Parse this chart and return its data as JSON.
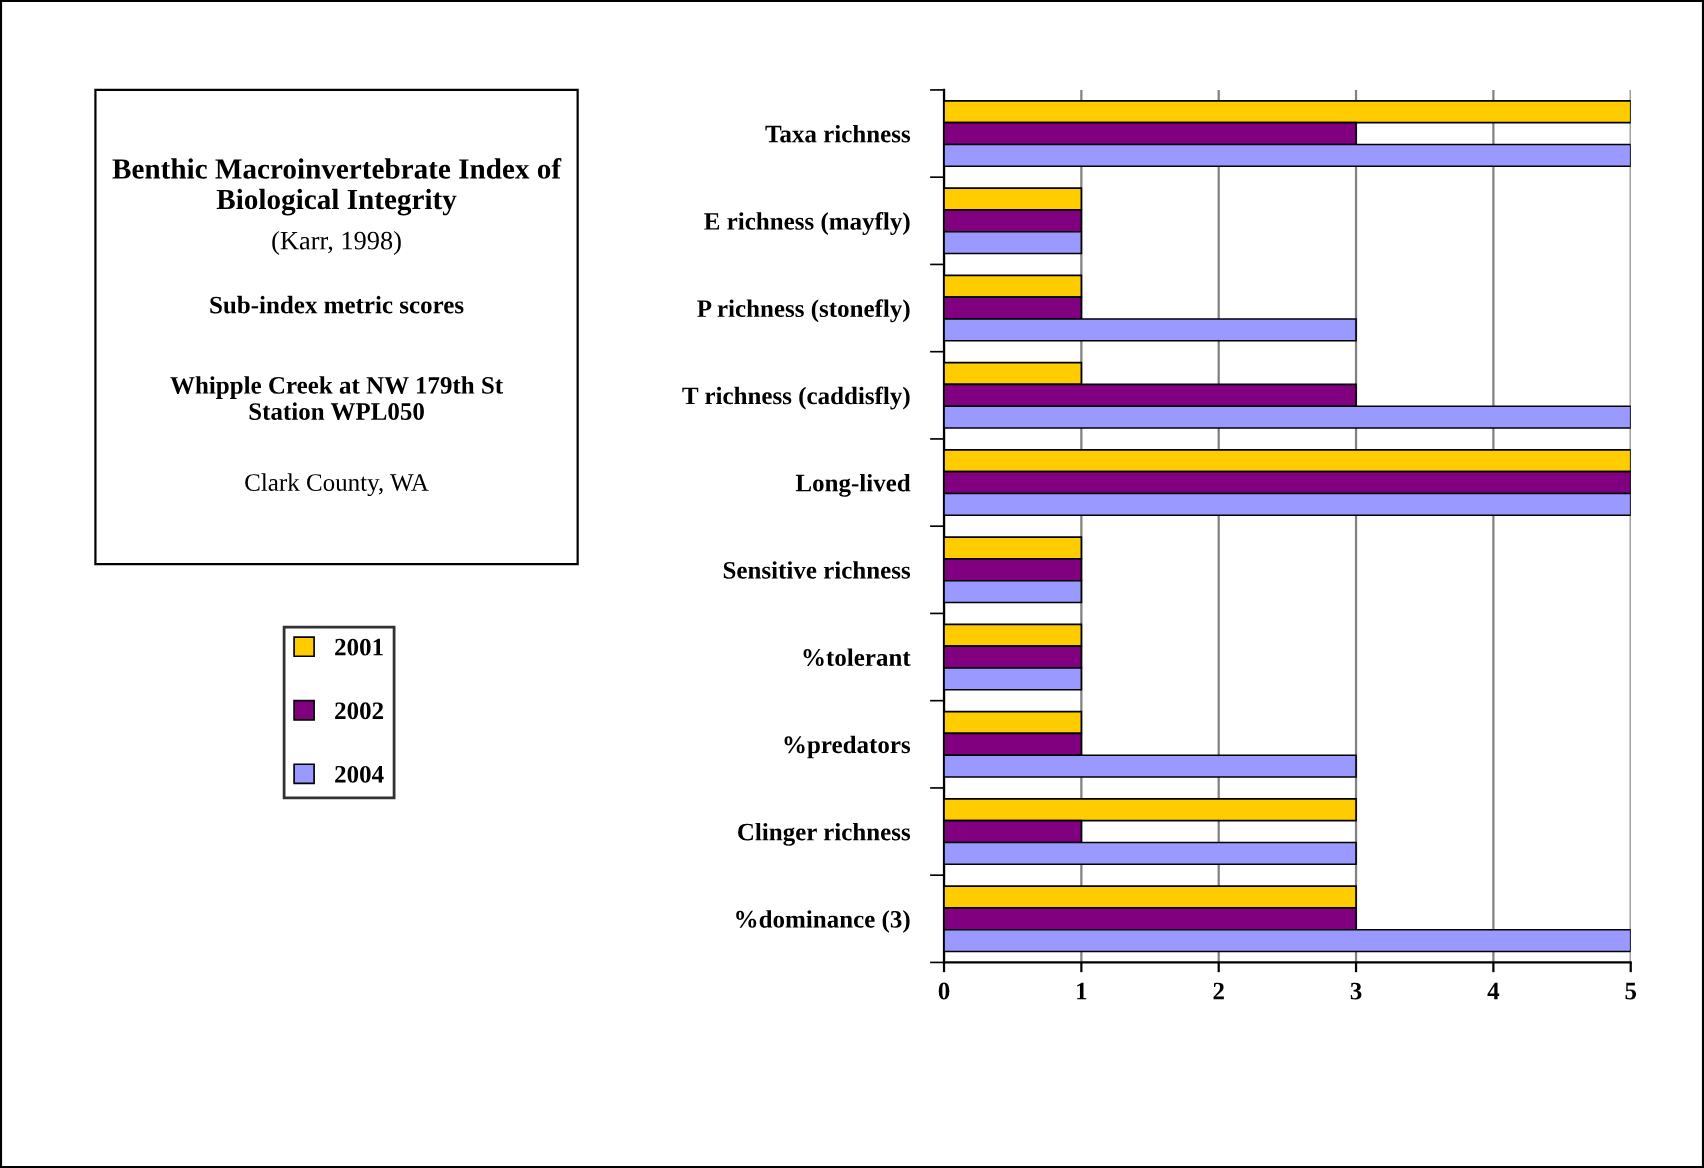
{
  "chart_data": {
    "type": "bar",
    "orientation": "horizontal",
    "title": "Benthic Macroinvertebrate Index of Biological Integrity",
    "subtitle": "(Karr, 1998)",
    "annotations": [
      "Sub-index metric scores",
      "Whipple Creek at NW 179th St Station WPL050",
      "Clark County, WA"
    ],
    "categories": [
      "Taxa richness",
      "E richness (mayfly)",
      "P richness (stonefly)",
      "T richness (caddisfly)",
      "Long-lived",
      "Sensitive richness",
      "%tolerant",
      "%predators",
      "Clinger richness",
      "%dominance (3)"
    ],
    "series": [
      {
        "name": "2001",
        "color": "#ffcc00",
        "values": [
          5,
          1,
          1,
          1,
          5,
          1,
          1,
          1,
          3,
          3
        ]
      },
      {
        "name": "2002",
        "color": "#800080",
        "values": [
          3,
          1,
          1,
          3,
          5,
          1,
          1,
          1,
          1,
          3
        ]
      },
      {
        "name": "2004",
        "color": "#9999ff",
        "values": [
          5,
          1,
          3,
          5,
          5,
          1,
          1,
          3,
          3,
          5
        ]
      }
    ],
    "xlim": [
      0,
      5
    ],
    "xticks": [
      0,
      1,
      2,
      3,
      4,
      5
    ],
    "grid": "x",
    "legend": "left"
  }
}
